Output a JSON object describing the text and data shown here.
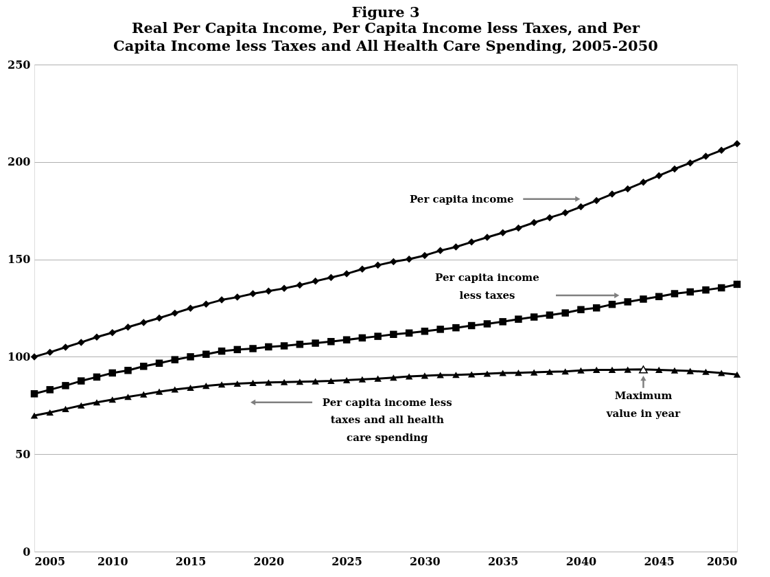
{
  "chart_data": {
    "type": "line",
    "title": "Figure 3",
    "subtitle": "Real Per Capita Income, Per Capita Income less Taxes, and Per Capita Income less Taxes and All Health Care Spending, 2005-2050",
    "x": [
      2005,
      2006,
      2007,
      2008,
      2009,
      2010,
      2011,
      2012,
      2013,
      2014,
      2015,
      2016,
      2017,
      2018,
      2019,
      2020,
      2021,
      2022,
      2023,
      2024,
      2025,
      2026,
      2027,
      2028,
      2029,
      2030,
      2031,
      2032,
      2033,
      2034,
      2035,
      2036,
      2037,
      2038,
      2039,
      2040,
      2041,
      2042,
      2043,
      2044,
      2045,
      2046,
      2047,
      2048,
      2049,
      2050
    ],
    "series": [
      {
        "name": "Per capita income",
        "color": "#000000",
        "marker": "diamond",
        "values": [
          100,
          102.3,
          104.9,
          107.4,
          110.1,
          112.4,
          115.2,
          117.6,
          119.9,
          122.4,
          124.9,
          127,
          129.2,
          130.6,
          132.4,
          133.7,
          135.1,
          136.8,
          138.8,
          140.7,
          142.6,
          145,
          147,
          148.8,
          150.1,
          152,
          154.5,
          156.4,
          158.9,
          161.3,
          163.7,
          166.1,
          168.9,
          171.4,
          173.9,
          177,
          180.2,
          183.5,
          186.2,
          189.6,
          193,
          196.4,
          199.5,
          202.9,
          206,
          209.4
        ]
      },
      {
        "name": "Per capita income less taxes",
        "color": "#000000",
        "marker": "square",
        "values": [
          81,
          83.1,
          85.2,
          87.6,
          89.6,
          91.7,
          93,
          95.1,
          96.7,
          98.5,
          100,
          101.3,
          102.9,
          103.7,
          104.2,
          105.1,
          105.6,
          106.4,
          107,
          107.8,
          108.7,
          109.7,
          110.5,
          111.5,
          112.2,
          113.1,
          114.1,
          114.9,
          116,
          116.9,
          118,
          119.3,
          120.4,
          121.4,
          122.5,
          124.2,
          125.1,
          126.9,
          128.2,
          129.6,
          130.9,
          132.4,
          133.3,
          134.3,
          135.4,
          137.2
        ]
      },
      {
        "name": "Per capita income less taxes and all health care spending",
        "color": "#000000",
        "marker": "triangle",
        "values": [
          69.8,
          71.4,
          73.2,
          75,
          76.6,
          78,
          79.4,
          80.7,
          82.1,
          83.2,
          84.1,
          85.1,
          85.8,
          86.2,
          86.6,
          86.8,
          87,
          87.2,
          87.4,
          87.6,
          88,
          88.4,
          88.8,
          89.3,
          89.9,
          90.3,
          90.6,
          90.7,
          91,
          91.3,
          91.7,
          91.8,
          92,
          92.3,
          92.5,
          93,
          93.3,
          93.3,
          93.4,
          93.5,
          93.3,
          93,
          92.7,
          92.3,
          91.7,
          90.9
        ]
      }
    ],
    "annotations": [
      {
        "text": "Maximum value in year",
        "x": 2044,
        "y": 93.5
      }
    ],
    "xlim": [
      2005,
      2050
    ],
    "xticks": [
      2005,
      2010,
      2015,
      2020,
      2025,
      2030,
      2035,
      2040,
      2045,
      2050
    ],
    "ylim": [
      0,
      250
    ],
    "yticks": [
      0,
      50,
      100,
      150,
      200,
      250
    ],
    "grid": "y",
    "line_style": "solid"
  }
}
